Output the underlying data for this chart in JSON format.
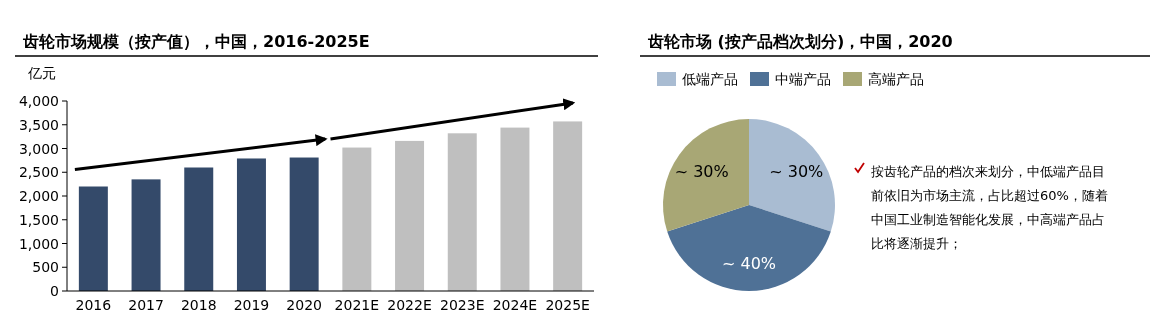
{
  "chart_data": [
    {
      "type": "bar",
      "title": "齿轮市场规模（按产值），中国，2016-2025E",
      "ylabel": "亿元",
      "categories": [
        "2016",
        "2017",
        "2018",
        "2019",
        "2020",
        "2021E",
        "2022E",
        "2023E",
        "2024E",
        "2025E"
      ],
      "values": [
        2200,
        2350,
        2600,
        2790,
        2810,
        3020,
        3160,
        3320,
        3440,
        3570
      ],
      "colors": [
        "#344a6a",
        "#344a6a",
        "#344a6a",
        "#344a6a",
        "#344a6a",
        "#bfbfbf",
        "#bfbfbf",
        "#bfbfbf",
        "#bfbfbf",
        "#bfbfbf"
      ],
      "ylim": [
        0,
        4000
      ],
      "yticks": [
        0,
        500,
        {
          "value": 1000,
          "label": "1,000"
        },
        {
          "value": 1500,
          "label": "1,500"
        },
        {
          "value": 2000,
          "label": "2,000"
        },
        {
          "value": 2500,
          "label": "2,500"
        },
        {
          "value": 3000,
          "label": "3,000"
        },
        {
          "value": 3500,
          "label": "3,500"
        },
        {
          "value": 4000,
          "label": "4,000"
        }
      ],
      "grid": false
    },
    {
      "type": "pie",
      "title": "齿轮市场 (按产品档次划分)，中国，2020",
      "categories": [
        "低端产品",
        "中端产品",
        "高端产品"
      ],
      "values": [
        30,
        40,
        30
      ],
      "value_labels": [
        "~ 30%",
        "~ 40%",
        "~ 30%"
      ],
      "colors": [
        "#a9bcd2",
        "#4f7196",
        "#a8a775"
      ],
      "legend": "top"
    },
    {
      "type": "other",
      "annotations": [
        "按齿轮产品的档次来划分，中低端产品目前依旧为市场主流，占比超过60%，随着中国工业制造智能化发展，中高端产品占比将逐渐提升；"
      ]
    }
  ]
}
